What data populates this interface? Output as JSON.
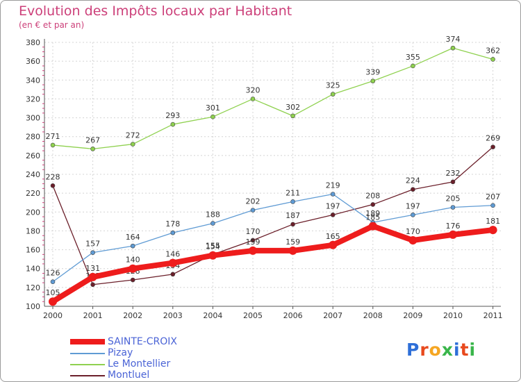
{
  "chart_data": {
    "type": "line",
    "title": "Evolution des Impôts locaux par Habitant",
    "subtitle": "(en € et par an)",
    "xlabel": "",
    "ylabel": "",
    "x": [
      "2000",
      "2001",
      "2002",
      "2003",
      "2004",
      "2005",
      "2006",
      "2007",
      "2008",
      "2009",
      "2010",
      "2011"
    ],
    "ylim": [
      100,
      380
    ],
    "yticks": [
      "100",
      "120",
      "140",
      "160",
      "180",
      "200",
      "220",
      "240",
      "260",
      "280",
      "300",
      "320",
      "340",
      "360",
      "380"
    ],
    "grid": true,
    "legend_position": "bottom-left",
    "series": [
      {
        "name": "Montluel",
        "color": "#6b1f2a",
        "values": [
          228,
          123,
          128,
          134,
          155,
          170,
          187,
          197,
          208,
          224,
          232,
          269
        ]
      },
      {
        "name": "Le Montellier",
        "color": "#8fd14f",
        "values": [
          271,
          267,
          272,
          293,
          301,
          320,
          302,
          325,
          339,
          355,
          374,
          362
        ]
      },
      {
        "name": "Pizay",
        "color": "#5f9bd4",
        "values": [
          126,
          157,
          164,
          178,
          188,
          202,
          211,
          219,
          189,
          197,
          205,
          207
        ]
      },
      {
        "name": "SAINTE-CROIX",
        "color": "#ee1c1c",
        "values": [
          105,
          131,
          140,
          146,
          154,
          159,
          159,
          165,
          185,
          170,
          176,
          181
        ]
      }
    ],
    "legend": [
      {
        "name": "SAINTE-CROIX",
        "color": "#ee1c1c"
      },
      {
        "name": "Pizay",
        "color": "#5f9bd4"
      },
      {
        "name": "Le Montellier",
        "color": "#8fd14f"
      },
      {
        "name": "Montluel",
        "color": "#6b1f2a"
      }
    ]
  },
  "logo": {
    "text": "Proxiti",
    "letters": [
      {
        "ch": "P",
        "color": "#2e6fd8"
      },
      {
        "ch": "r",
        "color": "#e8491d"
      },
      {
        "ch": "o",
        "color": "#f5a623"
      },
      {
        "ch": "x",
        "color": "#39b54a"
      },
      {
        "ch": "i",
        "color": "#2e6fd8"
      },
      {
        "ch": "t",
        "color": "#e8491d"
      },
      {
        "ch": "i",
        "color": "#39b54a"
      }
    ]
  }
}
